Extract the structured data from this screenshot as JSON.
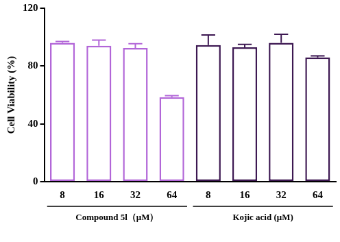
{
  "chart_data": {
    "type": "bar",
    "y_label": "Cell Viability (%)",
    "categories": [
      "8",
      "16",
      "32",
      "64",
      "8",
      "16",
      "32",
      "64"
    ],
    "ylim": [
      0,
      120
    ],
    "yticks": [
      0,
      40,
      80,
      120
    ],
    "grid": false,
    "series": [
      {
        "name": "Compound 5l（μM）",
        "color": "#b266d8",
        "values": [
          96,
          94,
          92.5,
          58.5,
          null,
          null,
          null,
          null
        ],
        "errors": [
          1,
          4,
          3,
          1,
          null,
          null,
          null,
          null
        ]
      },
      {
        "name": "Kojic acid (μM)",
        "color": "#3d1852",
        "values": [
          null,
          null,
          null,
          null,
          94.5,
          93,
          96,
          86
        ],
        "errors": [
          null,
          null,
          null,
          null,
          7,
          2,
          6,
          1
        ]
      }
    ]
  }
}
